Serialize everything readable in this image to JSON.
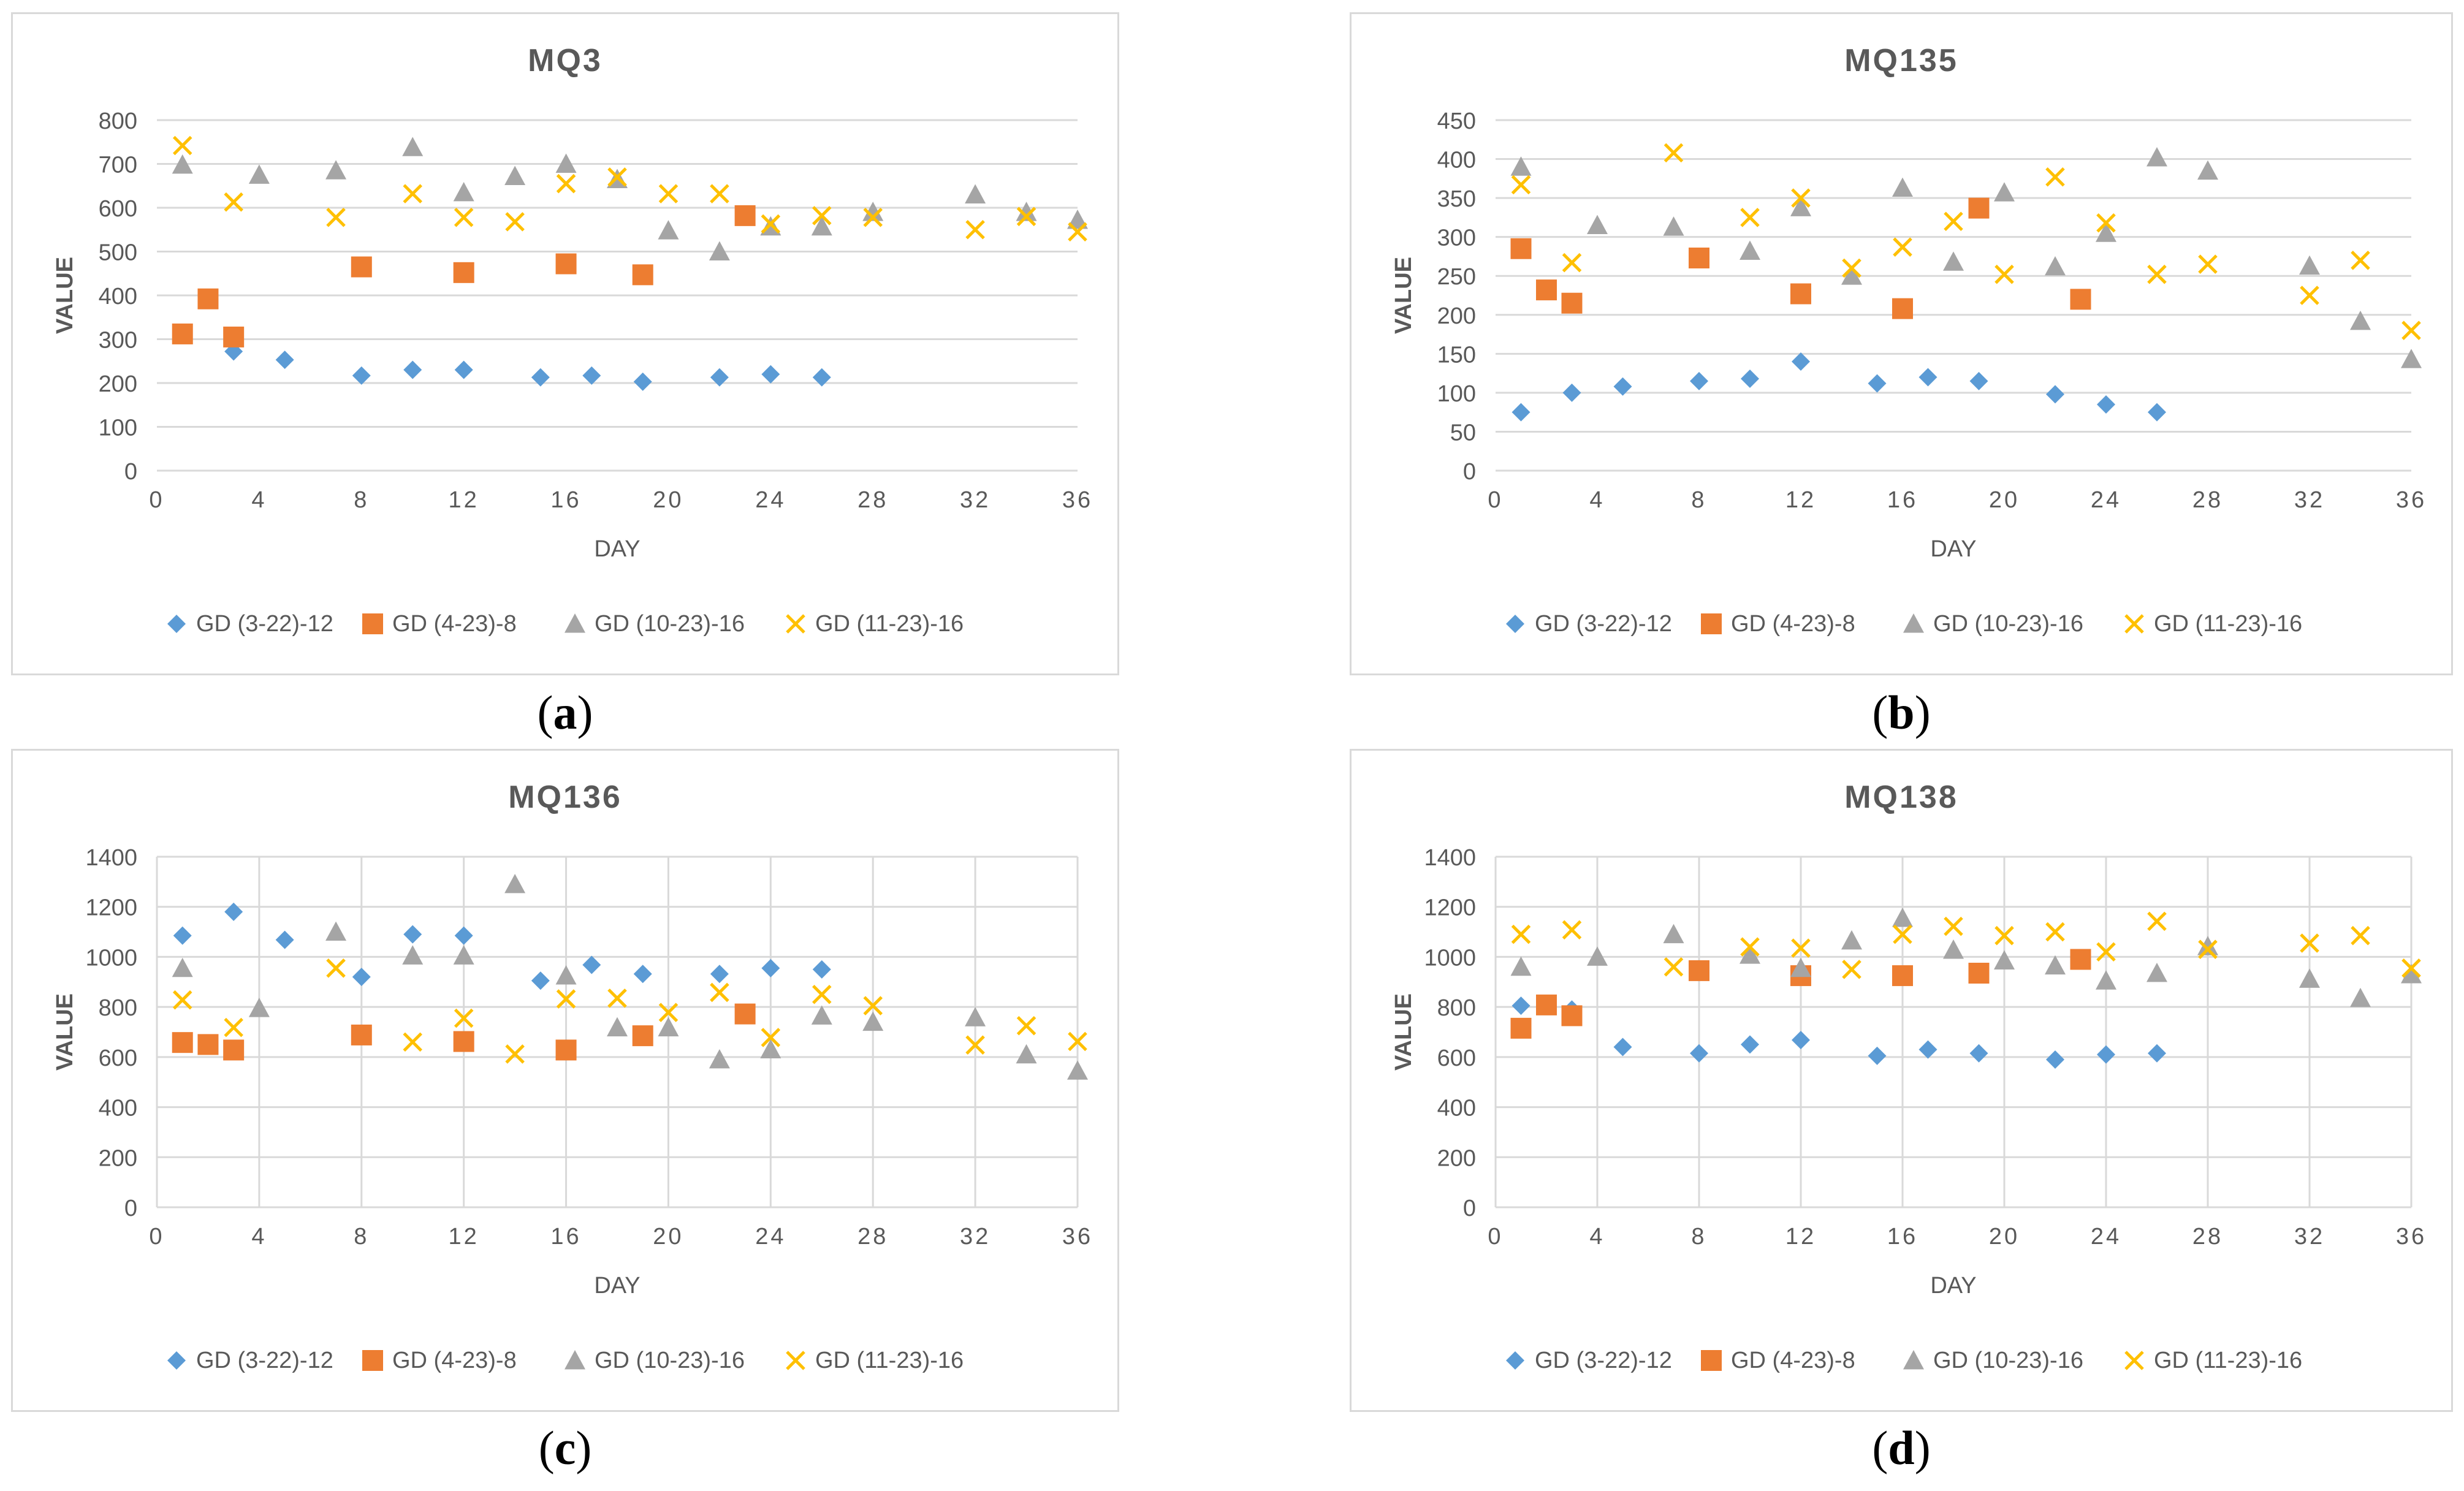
{
  "colors": {
    "GD (3-22)-12": "#5B9BD5",
    "GD (4-23)-8": "#ED7D31",
    "GD (10-23)-16": "#A5A5A5",
    "GD (11-23)-16": "#FFC000",
    "grid": "#D9D9D9",
    "text": "#595959"
  },
  "panels": [
    {
      "caption_open": "(",
      "caption_letter": "a",
      "caption_close": ")"
    },
    {
      "caption_open": "(",
      "caption_letter": "b",
      "caption_close": ")"
    },
    {
      "caption_open": "(",
      "caption_letter": "c",
      "caption_close": ")"
    },
    {
      "caption_open": "(",
      "caption_letter": "d",
      "caption_close": ")"
    }
  ],
  "chart_data": [
    {
      "type": "scatter",
      "title": "MQ3",
      "xlabel": "DAY",
      "ylabel": "VALUE",
      "xlim": [
        0,
        36
      ],
      "ylim": [
        0,
        800
      ],
      "xticks": [
        0,
        4,
        8,
        12,
        16,
        20,
        24,
        28,
        32,
        36
      ],
      "yticks": [
        0,
        100,
        200,
        300,
        400,
        500,
        600,
        700,
        800
      ],
      "vertical_grid": false,
      "legend": "bottom",
      "series": [
        {
          "name": "GD (3-22)-12",
          "marker": "diamond",
          "points": [
            [
              1,
              310
            ],
            [
              3,
              272
            ],
            [
              5,
              253
            ],
            [
              8,
              217
            ],
            [
              10,
              230
            ],
            [
              12,
              230
            ],
            [
              15,
              213
            ],
            [
              17,
              217
            ],
            [
              19,
              203
            ],
            [
              22,
              213
            ],
            [
              24,
              220
            ],
            [
              26,
              213
            ]
          ]
        },
        {
          "name": "GD (4-23)-8",
          "marker": "square",
          "points": [
            [
              1,
              312
            ],
            [
              2,
              392
            ],
            [
              3,
              305
            ],
            [
              8,
              465
            ],
            [
              12,
              452
            ],
            [
              16,
              472
            ],
            [
              19,
              447
            ],
            [
              23,
              582
            ]
          ]
        },
        {
          "name": "GD (10-23)-16",
          "marker": "triangle",
          "points": [
            [
              1,
              698
            ],
            [
              4,
              675
            ],
            [
              7,
              685
            ],
            [
              10,
              738
            ],
            [
              12,
              635
            ],
            [
              14,
              672
            ],
            [
              16,
              700
            ],
            [
              18,
              665
            ],
            [
              20,
              548
            ],
            [
              22,
              500
            ],
            [
              24,
              557
            ],
            [
              26,
              557
            ],
            [
              28,
              590
            ],
            [
              32,
              630
            ],
            [
              34,
              590
            ],
            [
              36,
              572
            ]
          ]
        },
        {
          "name": "GD (11-23)-16",
          "marker": "x",
          "points": [
            [
              1,
              742
            ],
            [
              3,
              613
            ],
            [
              7,
              578
            ],
            [
              10,
              632
            ],
            [
              12,
              578
            ],
            [
              14,
              568
            ],
            [
              16,
              655
            ],
            [
              18,
              670
            ],
            [
              20,
              632
            ],
            [
              22,
              632
            ],
            [
              24,
              563
            ],
            [
              26,
              582
            ],
            [
              28,
              578
            ],
            [
              32,
              550
            ],
            [
              34,
              580
            ],
            [
              36,
              545
            ]
          ]
        }
      ]
    },
    {
      "type": "scatter",
      "title": "MQ135",
      "xlabel": "DAY",
      "ylabel": "VALUE",
      "xlim": [
        0,
        36
      ],
      "ylim": [
        0,
        450
      ],
      "xticks": [
        0,
        4,
        8,
        12,
        16,
        20,
        24,
        28,
        32,
        36
      ],
      "yticks": [
        0,
        50,
        100,
        150,
        200,
        250,
        300,
        350,
        400,
        450
      ],
      "vertical_grid": false,
      "legend": "bottom",
      "series": [
        {
          "name": "GD (3-22)-12",
          "marker": "diamond",
          "points": [
            [
              1,
              75
            ],
            [
              3,
              100
            ],
            [
              5,
              108
            ],
            [
              8,
              115
            ],
            [
              10,
              118
            ],
            [
              12,
              140
            ],
            [
              15,
              112
            ],
            [
              17,
              120
            ],
            [
              19,
              115
            ],
            [
              22,
              98
            ],
            [
              24,
              85
            ],
            [
              26,
              75
            ]
          ]
        },
        {
          "name": "GD (4-23)-8",
          "marker": "square",
          "points": [
            [
              1,
              285
            ],
            [
              2,
              232
            ],
            [
              3,
              215
            ],
            [
              8,
              273
            ],
            [
              12,
              227
            ],
            [
              16,
              208
            ],
            [
              19,
              337
            ],
            [
              23,
              220
            ]
          ]
        },
        {
          "name": "GD (10-23)-16",
          "marker": "triangle",
          "points": [
            [
              1,
              390
            ],
            [
              4,
              315
            ],
            [
              7,
              313
            ],
            [
              10,
              282
            ],
            [
              12,
              338
            ],
            [
              14,
              250
            ],
            [
              16,
              363
            ],
            [
              18,
              268
            ],
            [
              20,
              357
            ],
            [
              22,
              262
            ],
            [
              24,
              305
            ],
            [
              26,
              402
            ],
            [
              28,
              385
            ],
            [
              32,
              263
            ],
            [
              34,
              192
            ],
            [
              36,
              143
            ]
          ]
        },
        {
          "name": "GD (11-23)-16",
          "marker": "x",
          "points": [
            [
              1,
              367
            ],
            [
              3,
              267
            ],
            [
              7,
              408
            ],
            [
              10,
              325
            ],
            [
              12,
              350
            ],
            [
              14,
              260
            ],
            [
              16,
              287
            ],
            [
              18,
              320
            ],
            [
              20,
              252
            ],
            [
              22,
              377
            ],
            [
              24,
              318
            ],
            [
              26,
              252
            ],
            [
              28,
              265
            ],
            [
              32,
              225
            ],
            [
              34,
              270
            ],
            [
              36,
              180
            ]
          ]
        }
      ]
    },
    {
      "type": "scatter",
      "title": "MQ136",
      "xlabel": "DAY",
      "ylabel": "VALUE",
      "xlim": [
        0,
        36
      ],
      "ylim": [
        0,
        1400
      ],
      "xticks": [
        0,
        4,
        8,
        12,
        16,
        20,
        24,
        28,
        32,
        36
      ],
      "yticks": [
        0,
        200,
        400,
        600,
        800,
        1000,
        1200,
        1400
      ],
      "vertical_grid": true,
      "legend": "bottom",
      "series": [
        {
          "name": "GD (3-22)-12",
          "marker": "diamond",
          "points": [
            [
              1,
              1085
            ],
            [
              3,
              1180
            ],
            [
              5,
              1068
            ],
            [
              8,
              920
            ],
            [
              10,
              1090
            ],
            [
              12,
              1085
            ],
            [
              15,
              905
            ],
            [
              17,
              968
            ],
            [
              19,
              932
            ],
            [
              22,
              932
            ],
            [
              24,
              955
            ],
            [
              26,
              950
            ]
          ]
        },
        {
          "name": "GD (4-23)-8",
          "marker": "square",
          "points": [
            [
              1,
              658
            ],
            [
              2,
              650
            ],
            [
              3,
              628
            ],
            [
              8,
              688
            ],
            [
              12,
              662
            ],
            [
              16,
              628
            ],
            [
              19,
              685
            ],
            [
              23,
              772
            ]
          ]
        },
        {
          "name": "GD (10-23)-16",
          "marker": "triangle",
          "points": [
            [
              1,
              955
            ],
            [
              4,
              795
            ],
            [
              7,
              1100
            ],
            [
              10,
              1005
            ],
            [
              12,
              1005
            ],
            [
              14,
              1290
            ],
            [
              16,
              925
            ],
            [
              18,
              718
            ],
            [
              20,
              718
            ],
            [
              22,
              590
            ],
            [
              24,
              630
            ],
            [
              26,
              765
            ],
            [
              28,
              740
            ],
            [
              32,
              758
            ],
            [
              34,
              610
            ],
            [
              36,
              545
            ]
          ]
        },
        {
          "name": "GD (11-23)-16",
          "marker": "x",
          "points": [
            [
              1,
              828
            ],
            [
              3,
              718
            ],
            [
              7,
              955
            ],
            [
              10,
              660
            ],
            [
              12,
              755
            ],
            [
              14,
              612
            ],
            [
              16,
              832
            ],
            [
              18,
              835
            ],
            [
              20,
              778
            ],
            [
              22,
              858
            ],
            [
              24,
              678
            ],
            [
              26,
              850
            ],
            [
              28,
              805
            ],
            [
              32,
              648
            ],
            [
              34,
              725
            ],
            [
              36,
              662
            ]
          ]
        }
      ]
    },
    {
      "type": "scatter",
      "title": "MQ138",
      "xlabel": "DAY",
      "ylabel": "VALUE",
      "xlim": [
        0,
        36
      ],
      "ylim": [
        0,
        1400
      ],
      "xticks": [
        0,
        4,
        8,
        12,
        16,
        20,
        24,
        28,
        32,
        36
      ],
      "yticks": [
        0,
        200,
        400,
        600,
        800,
        1000,
        1200,
        1400
      ],
      "vertical_grid": true,
      "legend": "bottom",
      "series": [
        {
          "name": "GD (3-22)-12",
          "marker": "diamond",
          "points": [
            [
              1,
              805
            ],
            [
              3,
              790
            ],
            [
              5,
              640
            ],
            [
              8,
              615
            ],
            [
              10,
              650
            ],
            [
              12,
              668
            ],
            [
              15,
              605
            ],
            [
              17,
              630
            ],
            [
              19,
              615
            ],
            [
              22,
              590
            ],
            [
              24,
              610
            ],
            [
              26,
              615
            ]
          ]
        },
        {
          "name": "GD (4-23)-8",
          "marker": "square",
          "points": [
            [
              1,
              715
            ],
            [
              2,
              808
            ],
            [
              3,
              765
            ],
            [
              8,
              945
            ],
            [
              12,
              925
            ],
            [
              16,
              925
            ],
            [
              19,
              935
            ],
            [
              23,
              990
            ]
          ]
        },
        {
          "name": "GD (10-23)-16",
          "marker": "triangle",
          "points": [
            [
              1,
              960
            ],
            [
              4,
              1000
            ],
            [
              7,
              1090
            ],
            [
              10,
              1008
            ],
            [
              12,
              955
            ],
            [
              14,
              1065
            ],
            [
              16,
              1155
            ],
            [
              18,
              1028
            ],
            [
              20,
              985
            ],
            [
              22,
              965
            ],
            [
              24,
              905
            ],
            [
              26,
              935
            ],
            [
              28,
              1042
            ],
            [
              32,
              912
            ],
            [
              34,
              835
            ],
            [
              36,
              930
            ]
          ]
        },
        {
          "name": "GD (11-23)-16",
          "marker": "x",
          "points": [
            [
              1,
              1090
            ],
            [
              3,
              1108
            ],
            [
              7,
              960
            ],
            [
              10,
              1040
            ],
            [
              12,
              1035
            ],
            [
              14,
              950
            ],
            [
              16,
              1090
            ],
            [
              18,
              1122
            ],
            [
              20,
              1085
            ],
            [
              22,
              1100
            ],
            [
              24,
              1020
            ],
            [
              26,
              1142
            ],
            [
              28,
              1030
            ],
            [
              32,
              1055
            ],
            [
              34,
              1085
            ],
            [
              36,
              955
            ]
          ]
        }
      ]
    }
  ]
}
